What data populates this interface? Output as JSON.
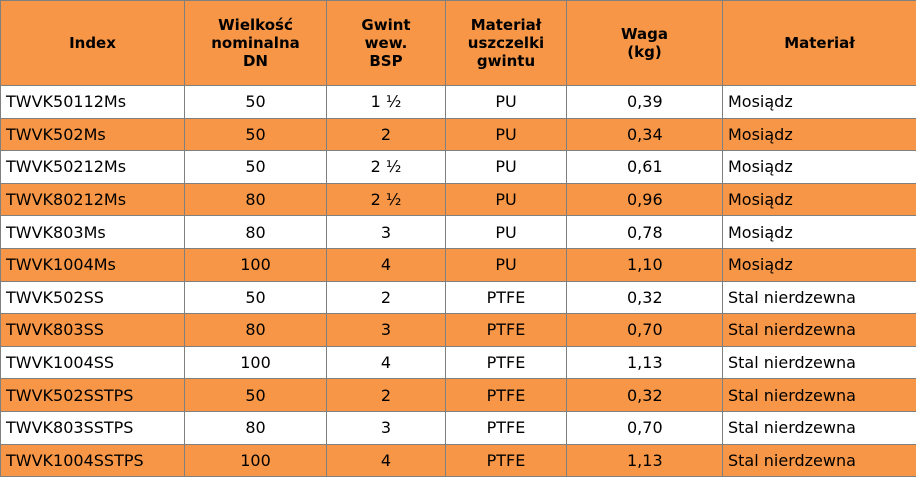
{
  "header": {
    "index": "Index",
    "size": [
      "Wielkość",
      "nominalna",
      "DN"
    ],
    "thread": [
      "Gwint",
      "wew.",
      "BSP"
    ],
    "seal": [
      "Materiał",
      "uszczelki",
      "gwintu"
    ],
    "weight": [
      "Waga",
      "(kg)"
    ],
    "material": "Materiał"
  },
  "rows": [
    {
      "index": "TWVK50112Ms",
      "dn": "50",
      "thread": "1 ½",
      "seal": "PU",
      "weight": "0,39",
      "material": "Mosiądz"
    },
    {
      "index": "TWVK502Ms",
      "dn": "50",
      "thread": "2",
      "seal": "PU",
      "weight": "0,34",
      "material": "Mosiądz"
    },
    {
      "index": "TWVK50212Ms",
      "dn": "50",
      "thread": "2 ½",
      "seal": "PU",
      "weight": "0,61",
      "material": "Mosiądz"
    },
    {
      "index": "TWVK80212Ms",
      "dn": "80",
      "thread": "2 ½",
      "seal": "PU",
      "weight": "0,96",
      "material": "Mosiądz"
    },
    {
      "index": "TWVK803Ms",
      "dn": "80",
      "thread": "3",
      "seal": "PU",
      "weight": "0,78",
      "material": "Mosiądz"
    },
    {
      "index": "TWVK1004Ms",
      "dn": "100",
      "thread": "4",
      "seal": "PU",
      "weight": "1,10",
      "material": "Mosiądz"
    },
    {
      "index": "TWVK502SS",
      "dn": "50",
      "thread": "2",
      "seal": "PTFE",
      "weight": "0,32",
      "material": "Stal nierdzewna"
    },
    {
      "index": "TWVK803SS",
      "dn": "80",
      "thread": "3",
      "seal": "PTFE",
      "weight": "0,70",
      "material": "Stal nierdzewna"
    },
    {
      "index": "TWVK1004SS",
      "dn": "100",
      "thread": "4",
      "seal": "PTFE",
      "weight": "1,13",
      "material": "Stal nierdzewna"
    },
    {
      "index": "TWVK502SSTPS",
      "dn": "50",
      "thread": "2",
      "seal": "PTFE",
      "weight": "0,32",
      "material": "Stal nierdzewna"
    },
    {
      "index": "TWVK803SSTPS",
      "dn": "80",
      "thread": "3",
      "seal": "PTFE",
      "weight": "0,70",
      "material": "Stal nierdzewna"
    },
    {
      "index": "TWVK1004SSTPS",
      "dn": "100",
      "thread": "4",
      "seal": "PTFE",
      "weight": "1,13",
      "material": "Stal nierdzewna"
    }
  ]
}
